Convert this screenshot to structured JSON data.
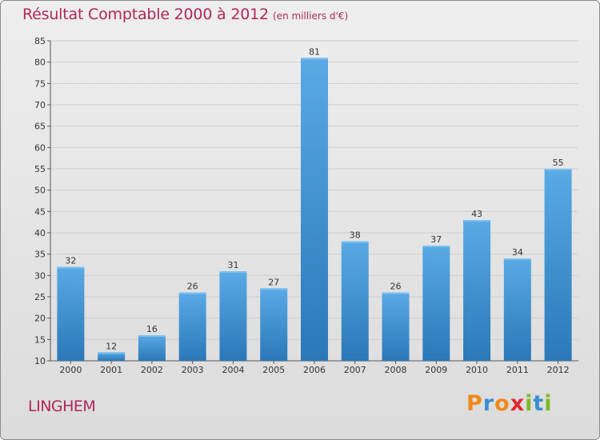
{
  "header": {
    "title": "Résultat Comptable 2000 à 2012",
    "subtitle": "(en milliers d'€)"
  },
  "footer": {
    "commune": "LINGHEM",
    "brand": "Proxiti"
  },
  "colors": {
    "title": "#b0275a",
    "bar_top": "#5aaae6",
    "bar_bottom": "#2a78b8",
    "grid": "#cfcfcf"
  },
  "chart_data": {
    "type": "bar",
    "title": "Résultat Comptable 2000 à 2012",
    "subtitle": "(en milliers d'€)",
    "xlabel": "",
    "ylabel": "",
    "categories": [
      "2000",
      "2001",
      "2002",
      "2003",
      "2004",
      "2005",
      "2006",
      "2007",
      "2008",
      "2009",
      "2010",
      "2011",
      "2012"
    ],
    "values": [
      32,
      12,
      16,
      26,
      31,
      27,
      81,
      38,
      26,
      37,
      43,
      34,
      55
    ],
    "ylim": [
      10,
      85
    ],
    "yticks": [
      10,
      15,
      20,
      25,
      30,
      35,
      40,
      45,
      50,
      55,
      60,
      65,
      70,
      75,
      80,
      85
    ],
    "grid": true,
    "legend": "none"
  }
}
